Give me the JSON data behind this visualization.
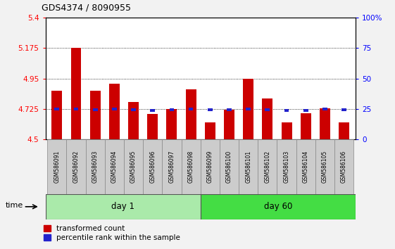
{
  "title": "GDS4374 / 8090955",
  "samples": [
    "GSM586091",
    "GSM586092",
    "GSM586093",
    "GSM586094",
    "GSM586095",
    "GSM586096",
    "GSM586097",
    "GSM586098",
    "GSM586099",
    "GSM586100",
    "GSM586101",
    "GSM586102",
    "GSM586103",
    "GSM586104",
    "GSM586105",
    "GSM586106"
  ],
  "red_values": [
    4.86,
    5.175,
    4.86,
    4.91,
    4.775,
    4.69,
    4.725,
    4.87,
    4.625,
    4.72,
    4.95,
    4.8,
    4.625,
    4.695,
    4.73,
    4.625
  ],
  "blue_values": [
    4.725,
    4.725,
    4.72,
    4.725,
    4.72,
    4.715,
    4.72,
    4.725,
    4.72,
    4.72,
    4.725,
    4.72,
    4.715,
    4.715,
    4.725,
    4.72
  ],
  "ymin": 4.5,
  "ymax": 5.4,
  "yticks_left": [
    4.5,
    4.725,
    4.95,
    5.175,
    5.4
  ],
  "yticks_left_labels": [
    "4.5",
    "4.725",
    "4.95",
    "5.175",
    "5.4"
  ],
  "yticks_right_vals": [
    0,
    25,
    50,
    75,
    100
  ],
  "yticks_right_pos": [
    4.5,
    4.725,
    4.95,
    5.175,
    5.4
  ],
  "yticks_right_labels": [
    "0",
    "25",
    "50",
    "75",
    "100%"
  ],
  "day1_count": 8,
  "day60_count": 8,
  "bar_color_red": "#CC0000",
  "bar_color_blue": "#2222CC",
  "bg_plot": "#FFFFFF",
  "bg_day1": "#AAEAAA",
  "bg_day60": "#44DD44",
  "grid_color": "#000000",
  "bar_width": 0.55,
  "legend_red": "transformed count",
  "legend_blue": "percentile rank within the sample",
  "time_label": "time",
  "day1_label": "day 1",
  "day60_label": "day 60",
  "fig_bg": "#F2F2F2"
}
